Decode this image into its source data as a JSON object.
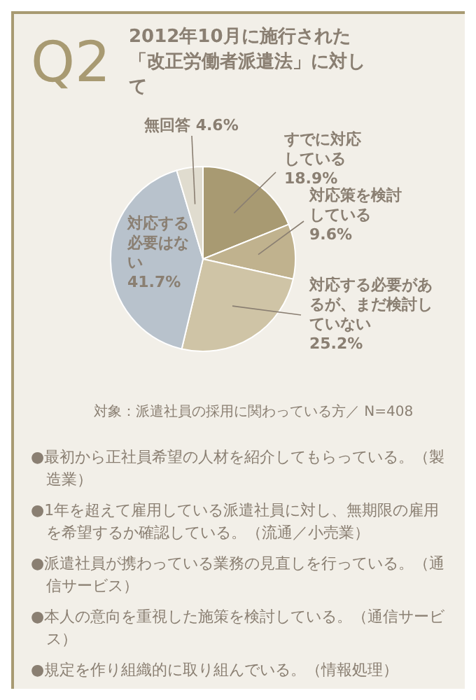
{
  "chart_data": {
    "type": "pie",
    "title": "Q2",
    "subtitle": "2012年10月に施行された「改正労働者派遣法」に対して",
    "categories": [
      "すでに対応している",
      "対応策を検討している",
      "対応する必要があるが、まだ検討していない",
      "対応する必要はない",
      "無回答"
    ],
    "values": [
      18.9,
      9.6,
      25.2,
      41.7,
      4.6
    ],
    "colors": [
      "#a89a72",
      "#c0b28e",
      "#cfc4a6",
      "#b8c2cc",
      "#e0dccf"
    ],
    "value_labels": [
      "18.9%",
      "9.6%",
      "25.2%",
      "41.7%",
      "4.6%"
    ],
    "annotations": [
      "対象：派遣社員の採用に関わっている方／ N=408",
      "●最初から正社員希望の人材を紹介してもらっている。（製造業）",
      "●1年を超えて雇用している派遣社員に対し、無期限の雇用を希望するか確認している。（流通／小売業）",
      "●派遣社員が携わっている業務の見直しを行っている。（通信サービス）",
      "●本人の意向を重視した施策を検討している。（通信サービス）",
      "●規定を作り組織的に取り組んでいる。（情報処理）"
    ],
    "legend": false
  }
}
